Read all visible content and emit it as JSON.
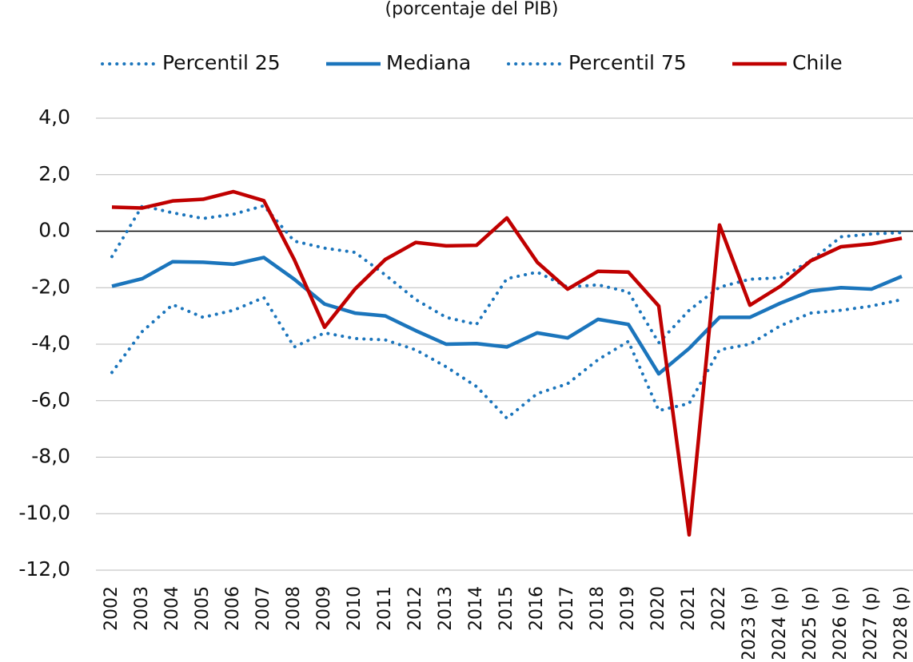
{
  "chart_data": {
    "type": "line",
    "subtitle": "(porcentaje del PIB)",
    "categories": [
      "2002",
      "2003",
      "2004",
      "2005",
      "2006",
      "2007",
      "2008",
      "2009",
      "2010",
      "2011",
      "2012",
      "2013",
      "2014",
      "2015",
      "2016",
      "2017",
      "2018",
      "2019",
      "2020",
      "2021",
      "2022",
      "2023 (p)",
      "2024 (p)",
      "2025 (p)",
      "2026 (p)",
      "2027 (p)",
      "2028 (p)"
    ],
    "series": [
      {
        "name": "Percentil 25",
        "color": "#1b75bc",
        "dash": "dotted",
        "values": [
          -5.0,
          -3.55,
          -2.6,
          -3.05,
          -2.8,
          -2.35,
          -4.1,
          -3.6,
          -3.8,
          -3.85,
          -4.2,
          -4.8,
          -5.5,
          -6.62,
          -5.75,
          -5.4,
          -4.55,
          -3.9,
          -6.35,
          -6.1,
          -4.2,
          -4.0,
          -3.35,
          -2.9,
          -2.8,
          -2.65,
          -2.42
        ]
      },
      {
        "name": "Mediana",
        "color": "#1b75bc",
        "dash": "solid",
        "values": [
          -1.95,
          -1.68,
          -1.08,
          -1.1,
          -1.17,
          -0.93,
          -1.7,
          -2.58,
          -2.9,
          -3.0,
          -3.52,
          -4.0,
          -3.98,
          -4.1,
          -3.6,
          -3.78,
          -3.12,
          -3.3,
          -5.05,
          -4.15,
          -3.05,
          -3.05,
          -2.55,
          -2.12,
          -2.0,
          -2.05,
          -1.6
        ]
      },
      {
        "name": "Percentil 75",
        "color": "#1b75bc",
        "dash": "dotted",
        "values": [
          -0.9,
          0.9,
          0.65,
          0.45,
          0.6,
          0.9,
          -0.35,
          -0.6,
          -0.75,
          -1.55,
          -2.42,
          -3.05,
          -3.3,
          -1.68,
          -1.45,
          -1.98,
          -1.9,
          -2.15,
          -3.95,
          -2.8,
          -1.98,
          -1.7,
          -1.65,
          -1.05,
          -0.2,
          -0.1,
          -0.05
        ]
      },
      {
        "name": "Chile",
        "color": "#c00000",
        "dash": "solid",
        "values": [
          0.85,
          0.82,
          1.07,
          1.13,
          1.4,
          1.08,
          -1.0,
          -3.4,
          -2.05,
          -1.0,
          -0.4,
          -0.52,
          -0.5,
          0.47,
          -1.1,
          -2.05,
          -1.42,
          -1.45,
          -2.65,
          -10.75,
          0.22,
          -2.62,
          -1.95,
          -1.05,
          -0.55,
          -0.45,
          -0.25
        ]
      }
    ],
    "ylim": [
      -12,
      4
    ],
    "yticks": [
      {
        "value": 4,
        "label": "4,0"
      },
      {
        "value": 2,
        "label": "2,0"
      },
      {
        "value": 0,
        "label": "0.0"
      },
      {
        "value": -2,
        "label": "-2,0"
      },
      {
        "value": -4,
        "label": "-4,0"
      },
      {
        "value": -6,
        "label": "-6,0"
      },
      {
        "value": -8,
        "label": "-8,0"
      },
      {
        "value": -10,
        "label": "-10,0"
      },
      {
        "value": -12,
        "label": "-12,0"
      }
    ],
    "grid": true,
    "legend": "top"
  }
}
